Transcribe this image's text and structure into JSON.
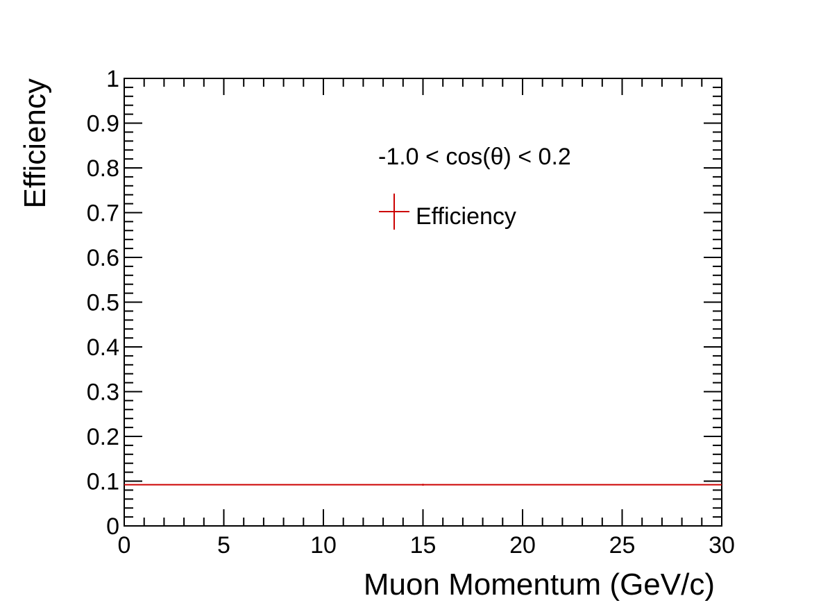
{
  "chart_data": {
    "type": "line",
    "title": "",
    "xlabel": "Muon Momentum (GeV/c)",
    "ylabel": "Efficiency",
    "xlim": [
      0,
      30
    ],
    "ylim": [
      0,
      1
    ],
    "x_ticks": [
      "0",
      "5",
      "10",
      "15",
      "20",
      "25",
      "30"
    ],
    "y_ticks": [
      "0",
      "0.1",
      "0.2",
      "0.3",
      "0.4",
      "0.5",
      "0.6",
      "0.7",
      "0.8",
      "0.9",
      "1"
    ],
    "annotation": "-1.0 < cos(θ) < 0.2",
    "grid": false,
    "legend_position": "top-center",
    "series": [
      {
        "name": "Efficiency",
        "color": "#cc0000",
        "x": [
          15
        ],
        "x_err": [
          15
        ],
        "y": [
          0.092
        ],
        "y_err": [
          0.002
        ]
      }
    ]
  }
}
